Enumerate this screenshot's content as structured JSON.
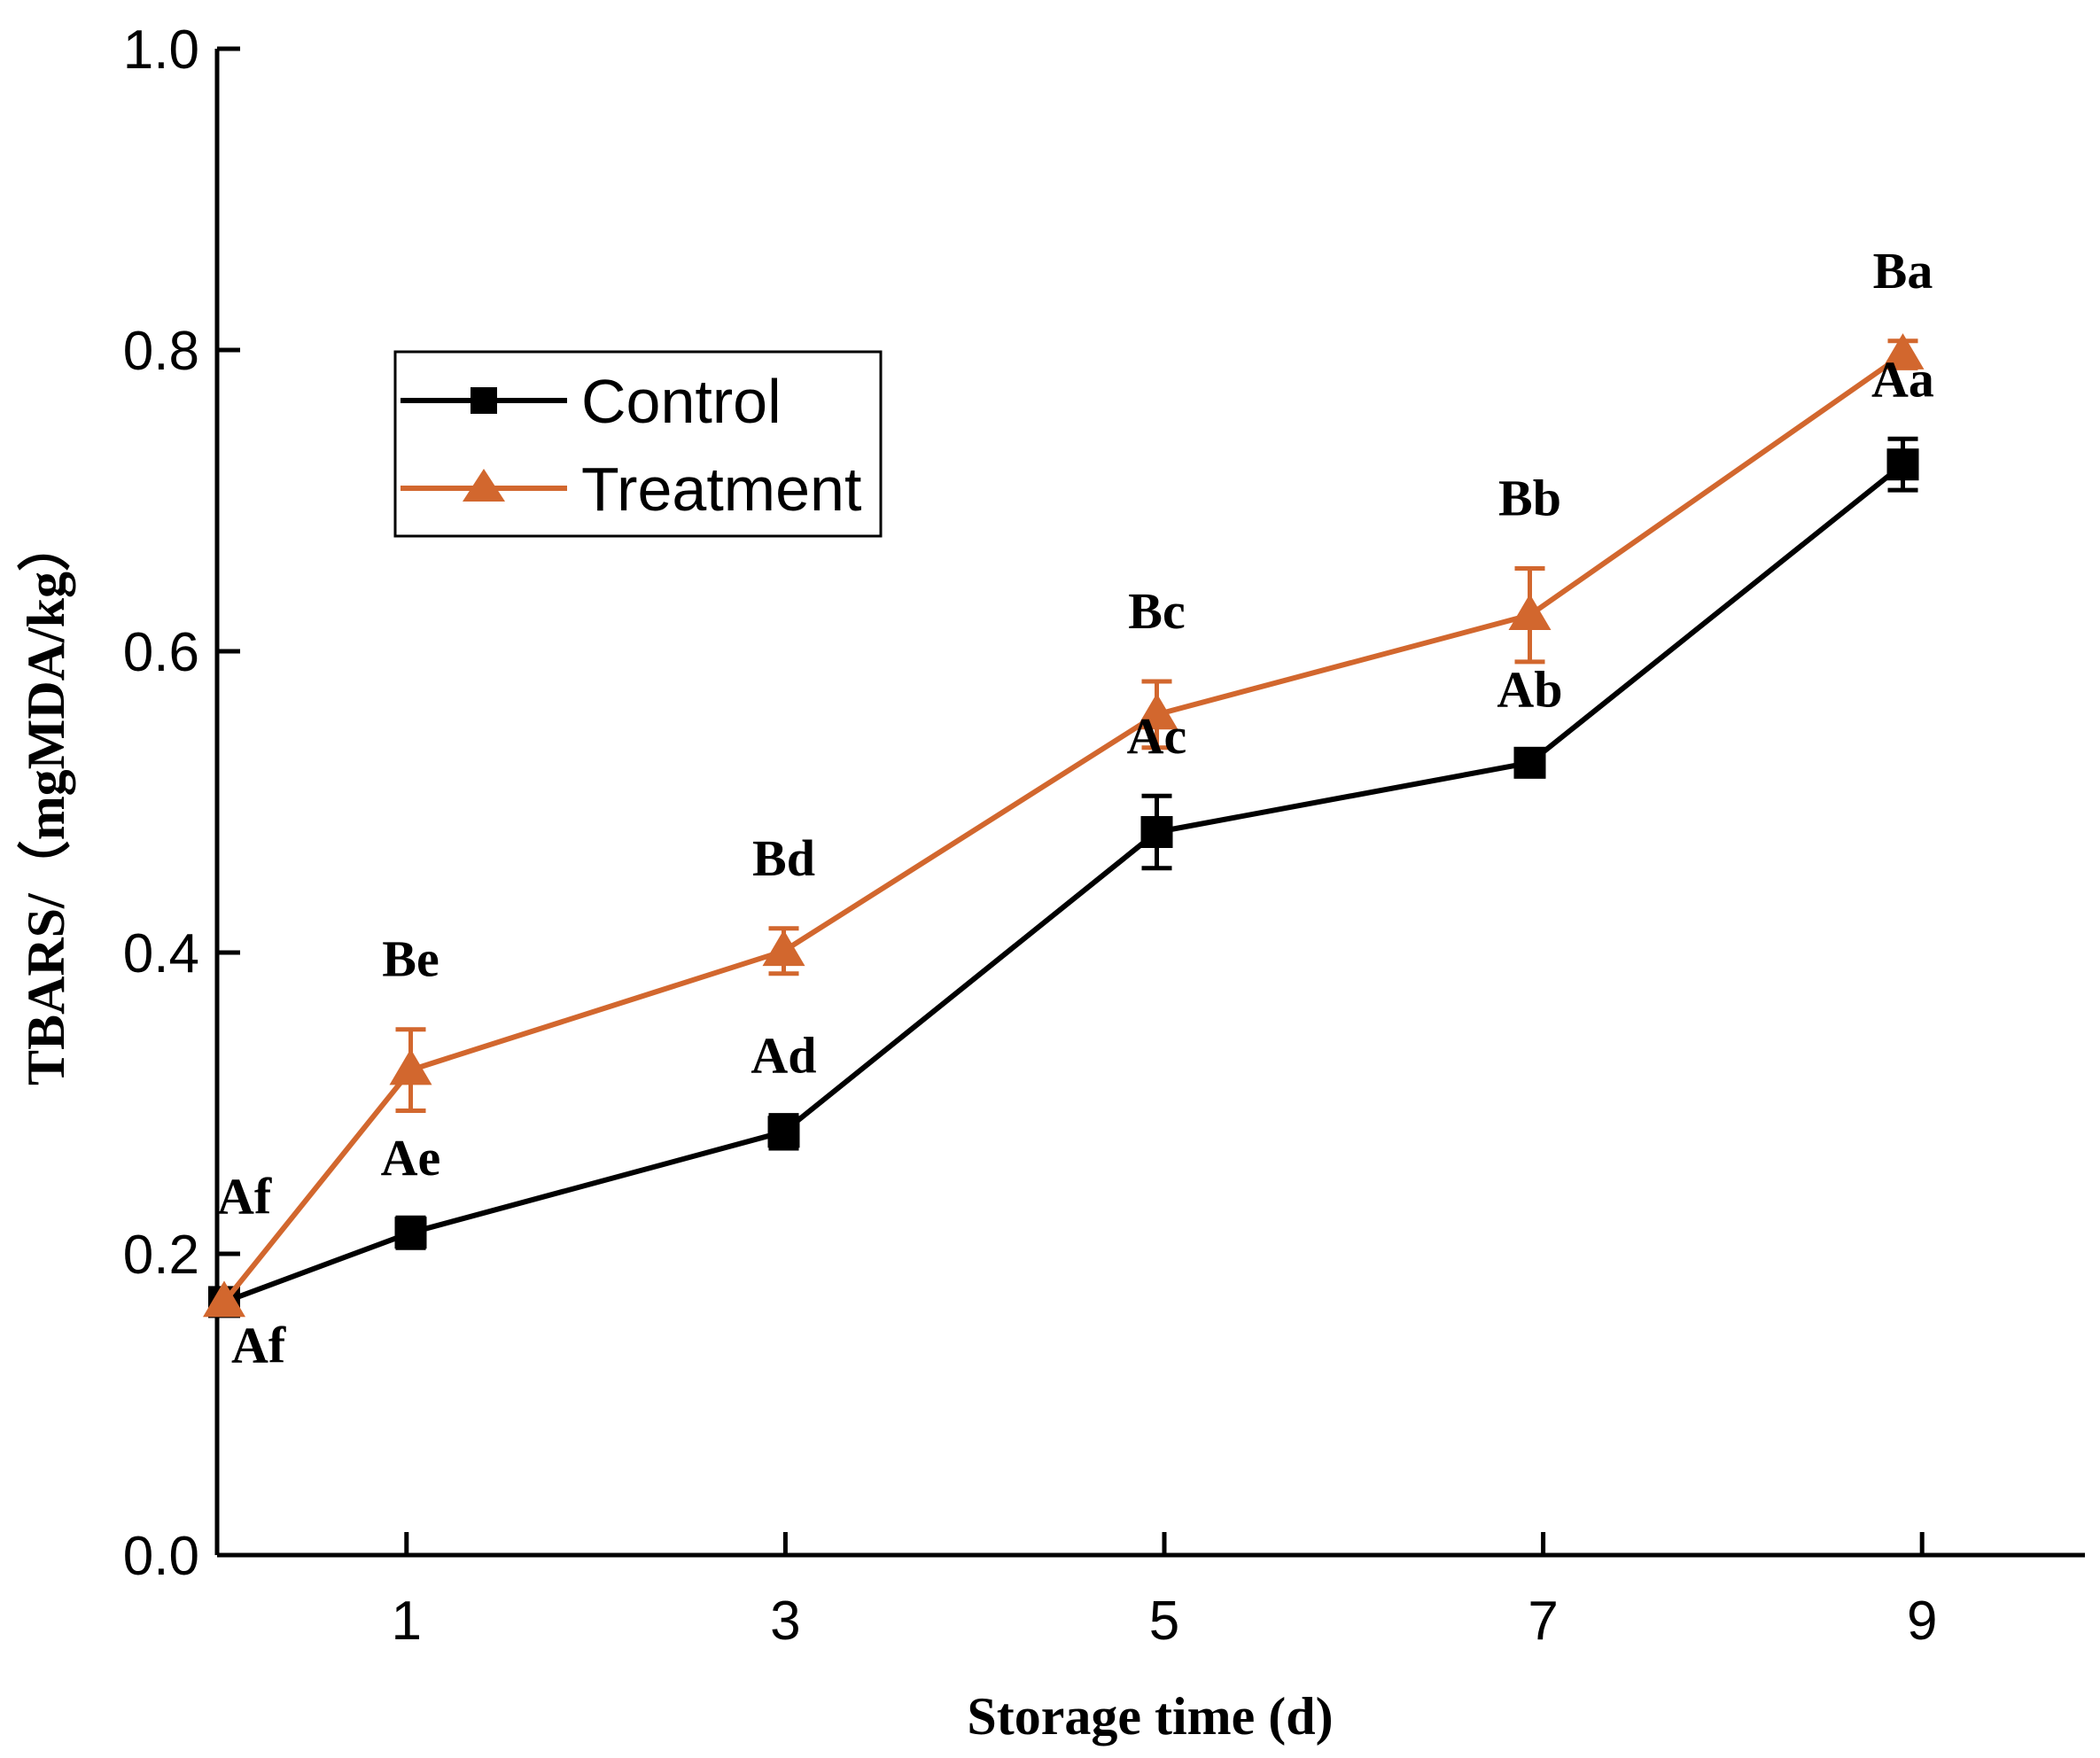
{
  "chart_data": {
    "type": "line",
    "title": "",
    "xlabel": "Storage time (d)",
    "ylabel": "TBARS/（mgMDA/kg）",
    "xlim": [
      0,
      10
    ],
    "ylim": [
      0.0,
      1.0
    ],
    "xticks": [
      1,
      3,
      5,
      7,
      9
    ],
    "xtick_labels": [
      "1",
      "3",
      "5",
      "7",
      "9"
    ],
    "yticks": [
      0.0,
      0.2,
      0.4,
      0.6,
      0.8,
      1.0
    ],
    "ytick_labels": [
      "0.0",
      "0.2",
      "0.4",
      "0.6",
      "0.8",
      "1.0"
    ],
    "grid": false,
    "legend_position": "upper-left",
    "series": [
      {
        "name": "Control",
        "color": "#000000",
        "marker": "square",
        "x": [
          0,
          1,
          3,
          5,
          7,
          9
        ],
        "values": [
          0.168,
          0.214,
          0.281,
          0.48,
          0.526,
          0.724
        ],
        "errors": [
          0.004,
          0.01,
          0.011,
          0.024,
          0.009,
          0.017
        ],
        "labels": [
          "Af",
          "Ae",
          "Ad",
          "Ac",
          "Ab",
          "Aa"
        ],
        "label_offsets": [
          "below-right",
          "above",
          "above",
          "above",
          "above",
          "above"
        ]
      },
      {
        "name": "Treatment",
        "color": "#D2672E",
        "marker": "triangle",
        "x": [
          0,
          1,
          3,
          5,
          7,
          9
        ],
        "values": [
          0.168,
          0.322,
          0.401,
          0.558,
          0.624,
          0.797
        ],
        "errors": [
          0.004,
          0.027,
          0.015,
          0.022,
          0.031,
          0.009
        ],
        "labels": [
          "Af",
          "Be",
          "Bd",
          "Bc",
          "Bb",
          "Ba"
        ],
        "label_offsets": [
          "above-right",
          "above",
          "above",
          "above",
          "above",
          "above"
        ]
      }
    ]
  }
}
